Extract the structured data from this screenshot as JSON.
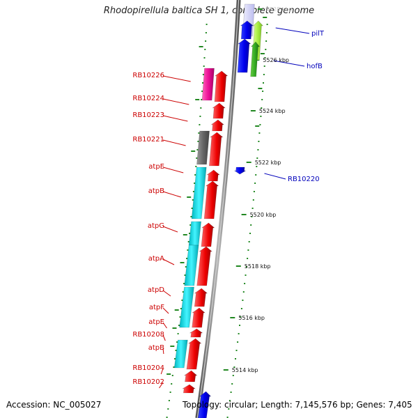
{
  "title": "Rhodopirellula baltica SH 1, complete genome",
  "accession": "Accession: NC_005027",
  "topology": "Topology: circular; Length: 7,145,576 bp; Genes: 7,405",
  "colors": {
    "backbone": "#7f7f7f",
    "forward": "#ee0000",
    "reverse_cyan": "#00e5ee",
    "reverse_blue": "#0000ee",
    "magenta": "#ee1199",
    "gray_gene": "#666666",
    "lime": "#99ee33",
    "green": "#33aa22",
    "label_red": "#cc0000",
    "label_blue": "#0000bb",
    "dots": "#228822"
  },
  "ticks": [
    "5528 kbp",
    "5526 kbp",
    "5524 kbp",
    "5522 kbp",
    "5520 kbp",
    "5518 kbp",
    "5516 kbp",
    "5514 kbp"
  ],
  "labels_left": [
    "RB10226",
    "RB10224",
    "RB10223",
    "RB10221",
    "atpE",
    "atpB",
    "atpG",
    "atpA",
    "atpD",
    "atpF",
    "atpE",
    "RB10208",
    "atpB",
    "RB10204",
    "RB10202"
  ],
  "labels_right": [
    "pilT",
    "hofB",
    "RB10220"
  ]
}
